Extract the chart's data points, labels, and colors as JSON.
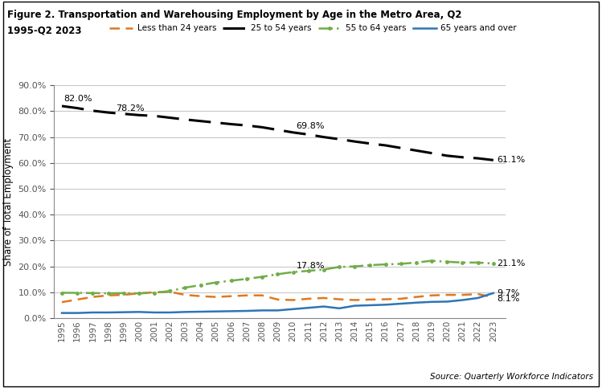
{
  "title_line1": "Figure 2. Transportation and Warehousing Employment by Age in the Metro Area, Q2",
  "title_line2": "1995-Q2 2023",
  "ylabel": "Share of Total Employment",
  "source": "Source: Quarterly Workforce Indicators",
  "years": [
    1995,
    1996,
    1997,
    1998,
    1999,
    2000,
    2001,
    2002,
    2003,
    2004,
    2005,
    2006,
    2007,
    2008,
    2009,
    2010,
    2011,
    2012,
    2013,
    2014,
    2015,
    2016,
    2017,
    2018,
    2019,
    2020,
    2021,
    2022,
    2023
  ],
  "series": {
    "less_than_24": {
      "label": "Less than 24 years",
      "color": "#E07820",
      "linestyle": "dashed",
      "linewidth": 1.8,
      "dashes": [
        5,
        3
      ],
      "marker": null,
      "values": [
        0.062,
        0.072,
        0.082,
        0.088,
        0.09,
        0.096,
        0.1,
        0.102,
        0.09,
        0.085,
        0.082,
        0.085,
        0.088,
        0.088,
        0.072,
        0.07,
        0.075,
        0.078,
        0.073,
        0.07,
        0.072,
        0.073,
        0.075,
        0.082,
        0.088,
        0.09,
        0.09,
        0.093,
        0.081
      ]
    },
    "25_to_54": {
      "label": "25 to 54 years",
      "color": "#000000",
      "linestyle": "dashed",
      "linewidth": 2.2,
      "dashes": [
        9,
        4
      ],
      "marker": null,
      "values": [
        0.82,
        0.812,
        0.802,
        0.795,
        0.79,
        0.785,
        0.782,
        0.775,
        0.768,
        0.762,
        0.756,
        0.75,
        0.745,
        0.738,
        0.728,
        0.718,
        0.71,
        0.7,
        0.692,
        0.683,
        0.675,
        0.668,
        0.658,
        0.648,
        0.638,
        0.628,
        0.622,
        0.618,
        0.611
      ]
    },
    "55_to_64": {
      "label": "55 to 64 years",
      "color": "#70AD47",
      "linestyle": "dashdot",
      "linewidth": 1.8,
      "dashes": [
        7,
        2,
        1,
        2
      ],
      "marker": "o",
      "markersize": 2.5,
      "values": [
        0.098,
        0.098,
        0.097,
        0.096,
        0.097,
        0.096,
        0.098,
        0.105,
        0.118,
        0.128,
        0.138,
        0.145,
        0.152,
        0.16,
        0.17,
        0.178,
        0.183,
        0.188,
        0.198,
        0.2,
        0.205,
        0.208,
        0.21,
        0.215,
        0.222,
        0.218,
        0.215,
        0.215,
        0.211
      ]
    },
    "65_and_over": {
      "label": "65 years and over",
      "color": "#2E75B6",
      "linestyle": "solid",
      "linewidth": 1.8,
      "dashes": null,
      "marker": null,
      "values": [
        0.02,
        0.02,
        0.022,
        0.022,
        0.023,
        0.024,
        0.022,
        0.022,
        0.024,
        0.025,
        0.026,
        0.027,
        0.028,
        0.03,
        0.03,
        0.035,
        0.04,
        0.045,
        0.038,
        0.048,
        0.05,
        0.052,
        0.056,
        0.06,
        0.063,
        0.064,
        0.07,
        0.078,
        0.097
      ]
    }
  },
  "ylim": [
    0.0,
    0.9
  ],
  "yticks": [
    0.0,
    0.1,
    0.2,
    0.3,
    0.4,
    0.5,
    0.6,
    0.7,
    0.8,
    0.9
  ],
  "background_color": "#ffffff",
  "grid_color": "#c8c8c8",
  "border_color": "#000000"
}
